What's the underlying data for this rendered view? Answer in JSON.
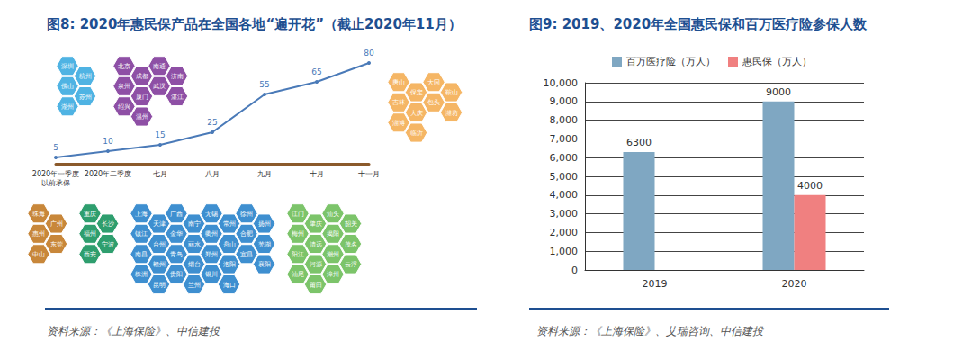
{
  "chart_data": [
    {
      "type": "line",
      "title": "图8: 2020年惠民保产品在全国各地“遍开花”（截止2020年11月）",
      "source": "资料来源：《上海保险》、中信建投",
      "categories": [
        "2020年一季度以前承保",
        "2020年二季度",
        "七月",
        "八月",
        "九月",
        "十月",
        "十一月"
      ],
      "values": [
        5,
        10,
        15,
        25,
        55,
        65,
        80
      ],
      "color": "#4a7ab8",
      "ylim": [
        0,
        80
      ],
      "grid": false,
      "tick_labels": "x",
      "data_labels": true,
      "hexagon_groups": [
        {
          "period": "2020年一季度以前承保",
          "color": "#4fb3e3",
          "cities": [
            "深圳",
            "杭州",
            "佛山",
            "苏州",
            "湖州"
          ]
        },
        {
          "period": "2020年二季度",
          "color": "#c8873a",
          "cities": [
            "珠海",
            "广州",
            "惠州",
            "东莞",
            "中山"
          ]
        },
        {
          "period": "七月",
          "color": "#2e9e6e",
          "cities": [
            "重庆",
            "长沙",
            "福州",
            "宁波",
            "西安"
          ]
        },
        {
          "period": "八月",
          "color": "#8e4fa5",
          "cities": [
            "北京",
            "成都",
            "南通",
            "济南",
            "泉州",
            "厦门",
            "武汉",
            "湛江",
            "绍兴",
            "温州"
          ]
        },
        {
          "period": "九月",
          "color": "#3e8fd0",
          "cities": [
            "上海",
            "天津",
            "广西",
            "南宁",
            "无锡",
            "常州",
            "徐州",
            "扬州",
            "镇江",
            "台州",
            "金华",
            "丽水",
            "衢州",
            "舟山",
            "合肥",
            "芜湖",
            "南昌",
            "赣州",
            "青岛",
            "烟台",
            "郑州",
            "洛阳",
            "宜昌",
            "襄阳",
            "株洲",
            "昆明",
            "贵阳",
            "兰州",
            "银川",
            "海口"
          ]
        },
        {
          "period": "十月",
          "color": "#f5b665",
          "cities": [
            "唐山",
            "保定",
            "大同",
            "鞍山",
            "吉林",
            "大庆",
            "包头",
            "潍坊",
            "淄博",
            "临沂"
          ]
        },
        {
          "period": "十一月",
          "color": "#7cc46a",
          "cities": [
            "江门",
            "肇庆",
            "汕头",
            "韶关",
            "梅州",
            "清远",
            "揭阳",
            "茂名",
            "阳江",
            "河源",
            "潮州",
            "云浮",
            "汕尾",
            "莆田",
            "漳州"
          ]
        }
      ]
    },
    {
      "type": "bar",
      "title": "图9: 2019、2020年全国惠民保和百万医疗险参保人数",
      "source": "资料来源：《上海保险》、艾瑞咨询、中信建投",
      "categories": [
        "2019",
        "2020"
      ],
      "series": [
        {
          "name": "百万医疗险（万人）",
          "color": "#7fa7c2",
          "values": [
            6300,
            9000
          ]
        },
        {
          "name": "惠民保（万人）",
          "color": "#f08080",
          "values": [
            null,
            4000
          ]
        }
      ],
      "ylim": [
        0,
        10000
      ],
      "yticks": [
        0,
        1000,
        2000,
        3000,
        4000,
        5000,
        6000,
        7000,
        8000,
        9000,
        10000
      ],
      "grid": true,
      "legend": "top",
      "data_labels": true
    }
  ]
}
